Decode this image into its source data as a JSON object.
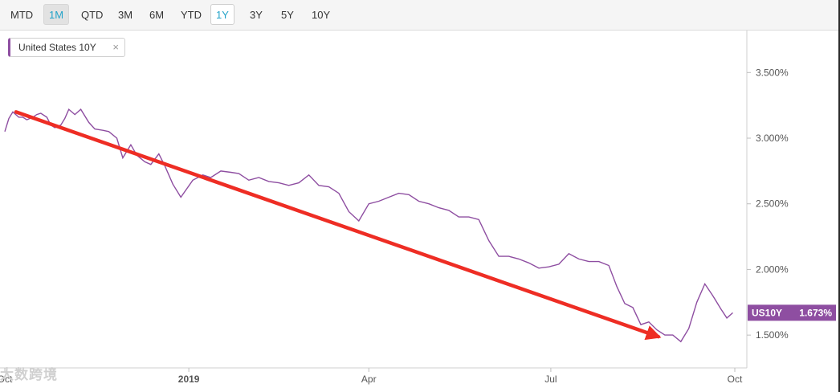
{
  "toolbar": {
    "ranges": [
      "MTD",
      "1M",
      "QTD",
      "3M",
      "6M",
      "YTD",
      "1Y",
      "3Y",
      "5Y",
      "10Y"
    ],
    "active": "1M",
    "outlined": "1Y"
  },
  "legend_chip": {
    "label": "United States 10Y",
    "close_icon": "×"
  },
  "last_value_tag": {
    "symbol": "US10Y",
    "value": "1.673%",
    "color": "#8e4ea1"
  },
  "watermark": "大数跨境",
  "colors": {
    "series": "#8e4ea1",
    "trend_arrow": "#ee2d24"
  },
  "chart_data": {
    "type": "line",
    "series": [
      {
        "name": "United States 10Y",
        "x": [
          "2018-10-01",
          "2018-10-03",
          "2018-10-05",
          "2018-10-08",
          "2018-10-10",
          "2018-10-12",
          "2018-10-15",
          "2018-10-17",
          "2018-10-19",
          "2018-10-22",
          "2018-10-24",
          "2018-10-26",
          "2018-10-29",
          "2018-10-31",
          "2018-11-02",
          "2018-11-05",
          "2018-11-08",
          "2018-11-12",
          "2018-11-15",
          "2018-11-19",
          "2018-11-22",
          "2018-11-26",
          "2018-11-29",
          "2018-12-03",
          "2018-12-06",
          "2018-12-10",
          "2018-12-13",
          "2018-12-17",
          "2018-12-20",
          "2018-12-24",
          "2018-12-28",
          "2019-01-03",
          "2019-01-08",
          "2019-01-12",
          "2019-01-17",
          "2019-01-22",
          "2019-01-26",
          "2019-01-31",
          "2019-02-05",
          "2019-02-10",
          "2019-02-15",
          "2019-02-20",
          "2019-02-25",
          "2019-03-02",
          "2019-03-07",
          "2019-03-12",
          "2019-03-17",
          "2019-03-22",
          "2019-03-27",
          "2019-04-01",
          "2019-04-06",
          "2019-04-11",
          "2019-04-16",
          "2019-04-21",
          "2019-04-26",
          "2019-05-01",
          "2019-05-06",
          "2019-05-11",
          "2019-05-16",
          "2019-05-21",
          "2019-05-26",
          "2019-05-31",
          "2019-06-05",
          "2019-06-10",
          "2019-06-15",
          "2019-06-20",
          "2019-06-25",
          "2019-06-30",
          "2019-07-05",
          "2019-07-10",
          "2019-07-15",
          "2019-07-20",
          "2019-07-25",
          "2019-07-30",
          "2019-08-03",
          "2019-08-07",
          "2019-08-11",
          "2019-08-15",
          "2019-08-19",
          "2019-08-23",
          "2019-08-27",
          "2019-08-31",
          "2019-09-04",
          "2019-09-08",
          "2019-09-12",
          "2019-09-16",
          "2019-09-20",
          "2019-09-24",
          "2019-09-27",
          "2019-09-30"
        ],
        "y": [
          3.05,
          3.15,
          3.2,
          3.16,
          3.16,
          3.14,
          3.16,
          3.18,
          3.19,
          3.16,
          3.1,
          3.08,
          3.1,
          3.15,
          3.22,
          3.18,
          3.22,
          3.12,
          3.07,
          3.06,
          3.05,
          3.0,
          2.85,
          2.95,
          2.87,
          2.82,
          2.8,
          2.88,
          2.79,
          2.65,
          2.55,
          2.68,
          2.72,
          2.7,
          2.75,
          2.74,
          2.73,
          2.68,
          2.7,
          2.67,
          2.66,
          2.64,
          2.66,
          2.72,
          2.64,
          2.63,
          2.58,
          2.44,
          2.37,
          2.5,
          2.52,
          2.55,
          2.58,
          2.57,
          2.52,
          2.5,
          2.47,
          2.45,
          2.4,
          2.4,
          2.38,
          2.22,
          2.1,
          2.1,
          2.08,
          2.05,
          2.01,
          2.02,
          2.04,
          2.12,
          2.08,
          2.06,
          2.06,
          2.03,
          1.87,
          1.74,
          1.71,
          1.58,
          1.6,
          1.54,
          1.5,
          1.5,
          1.45,
          1.55,
          1.75,
          1.89,
          1.8,
          1.7,
          1.63,
          1.67
        ]
      }
    ],
    "trend_arrow": {
      "from": [
        "2018-10-01",
        3.2
      ],
      "to": [
        "2019-08-27",
        1.5
      ]
    },
    "x_tick_labels": [
      "Oct",
      "2019",
      "Apr",
      "Jul",
      "Oct"
    ],
    "x_tick_values": [
      "2018-10-01",
      "2019-01-01",
      "2019-04-01",
      "2019-07-01",
      "2019-10-01"
    ],
    "y_tick_labels": [
      "1.500%",
      "2.000%",
      "2.500%",
      "3.000%",
      "3.500%"
    ],
    "y_tick_values": [
      1.5,
      2.0,
      2.5,
      3.0,
      3.5
    ],
    "xlim": [
      "2018-10-01",
      "2019-10-03"
    ],
    "ylim": [
      1.25,
      3.82
    ],
    "grid": false,
    "title": "",
    "xlabel": "",
    "ylabel": ""
  }
}
